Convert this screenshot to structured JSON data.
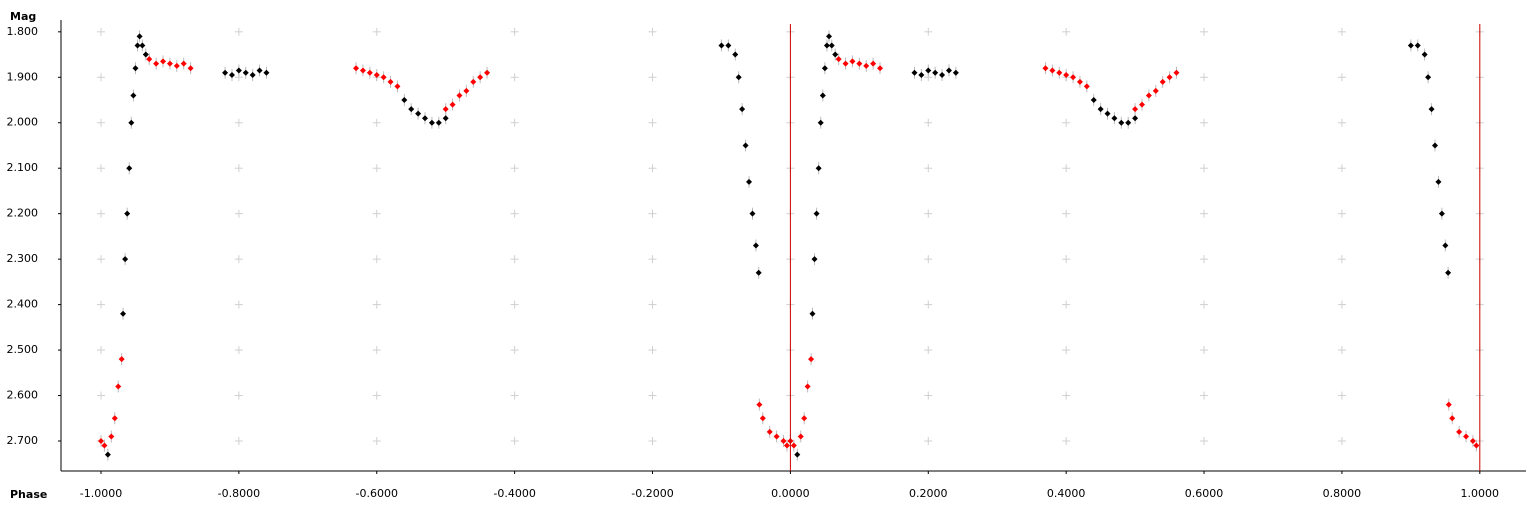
{
  "chart_data": {
    "type": "scatter",
    "x_label": "Phase",
    "y_label": "Mag",
    "xlim": [
      -1.058,
      1.067
    ],
    "ylim": [
      1.774,
      2.766
    ],
    "y_inverted": true,
    "grid": true,
    "xticks": [
      {
        "value": -1.0,
        "label": "-1.0000"
      },
      {
        "value": -0.8,
        "label": "-0.8000"
      },
      {
        "value": -0.6,
        "label": "-0.6000"
      },
      {
        "value": -0.4,
        "label": "-0.4000"
      },
      {
        "value": -0.2,
        "label": "-0.2000"
      },
      {
        "value": 0,
        "label": "0.0000"
      },
      {
        "value": 0.2,
        "label": "0.2000"
      },
      {
        "value": 0.4,
        "label": "0.4000"
      },
      {
        "value": 0.6,
        "label": "0.6000"
      },
      {
        "value": 0.8,
        "label": "0.8000"
      },
      {
        "value": 1.0,
        "label": "1.0000"
      }
    ],
    "yticks": [
      {
        "value": 1.8,
        "label": "1.800"
      },
      {
        "value": 1.9,
        "label": "1.900"
      },
      {
        "value": 2.0,
        "label": "2.000"
      },
      {
        "value": 2.1,
        "label": "2.100"
      },
      {
        "value": 2.2,
        "label": "2.200"
      },
      {
        "value": 2.3,
        "label": "2.300"
      },
      {
        "value": 2.4,
        "label": "2.400"
      },
      {
        "value": 2.5,
        "label": "2.500"
      },
      {
        "value": 2.6,
        "label": "2.600"
      },
      {
        "value": 2.7,
        "label": "2.700"
      }
    ],
    "reference_lines": {
      "values": [
        0,
        1
      ],
      "color": "#cc0000"
    },
    "series": [
      {
        "color": "#000000",
        "x": [
          -0.99,
          -0.968,
          -0.965,
          -0.962,
          -0.959,
          -0.956,
          -0.953,
          -0.95,
          -0.947,
          -0.944,
          -0.94,
          -0.935,
          -0.82,
          -0.81,
          -0.8,
          -0.79,
          -0.78,
          -0.77,
          -0.76,
          -0.56,
          -0.55,
          -0.54,
          -0.53,
          -0.52,
          -0.51,
          -0.5,
          -0.1,
          -0.09,
          -0.08,
          -0.075,
          -0.07,
          -0.065,
          -0.06,
          -0.055,
          -0.05,
          -0.046,
          0.01,
          0.032,
          0.035,
          0.038,
          0.041,
          0.044,
          0.047,
          0.05,
          0.053,
          0.056,
          0.06,
          0.065,
          0.18,
          0.19,
          0.2,
          0.21,
          0.22,
          0.23,
          0.24,
          0.44,
          0.45,
          0.46,
          0.47,
          0.48,
          0.49,
          0.5,
          0.9,
          0.91,
          0.92,
          0.925,
          0.93,
          0.935,
          0.94,
          0.945,
          0.95,
          0.954
        ],
        "values": [
          2.73,
          2.42,
          2.3,
          2.2,
          2.1,
          2.0,
          1.94,
          1.88,
          1.83,
          1.81,
          1.83,
          1.85,
          1.89,
          1.895,
          1.885,
          1.89,
          1.895,
          1.885,
          1.89,
          1.95,
          1.97,
          1.98,
          1.99,
          2.0,
          2.0,
          1.99,
          1.83,
          1.83,
          1.85,
          1.9,
          1.97,
          2.05,
          2.13,
          2.2,
          2.27,
          2.33,
          2.73,
          2.42,
          2.3,
          2.2,
          2.1,
          2.0,
          1.94,
          1.88,
          1.83,
          1.81,
          1.83,
          1.85,
          1.89,
          1.895,
          1.885,
          1.89,
          1.895,
          1.885,
          1.89,
          1.95,
          1.97,
          1.98,
          1.99,
          2.0,
          2.0,
          1.99,
          1.83,
          1.83,
          1.85,
          1.9,
          1.97,
          2.05,
          2.13,
          2.2,
          2.27,
          2.33
        ]
      },
      {
        "color": "#ff0000",
        "x": [
          -1.0,
          -0.995,
          -0.985,
          -0.98,
          -0.975,
          -0.97,
          -0.93,
          -0.92,
          -0.91,
          -0.9,
          -0.89,
          -0.88,
          -0.87,
          -0.63,
          -0.62,
          -0.61,
          -0.6,
          -0.59,
          -0.58,
          -0.57,
          -0.5,
          -0.49,
          -0.48,
          -0.47,
          -0.46,
          -0.45,
          -0.44,
          -0.045,
          -0.04,
          -0.03,
          -0.02,
          -0.01,
          -0.005,
          0.0,
          0.005,
          0.015,
          0.02,
          0.025,
          0.03,
          0.07,
          0.08,
          0.09,
          0.1,
          0.11,
          0.12,
          0.13,
          0.37,
          0.38,
          0.39,
          0.4,
          0.41,
          0.42,
          0.43,
          0.5,
          0.51,
          0.52,
          0.53,
          0.54,
          0.55,
          0.56,
          0.955,
          0.96,
          0.97,
          0.98,
          0.99,
          0.995
        ],
        "values": [
          2.7,
          2.71,
          2.69,
          2.65,
          2.58,
          2.52,
          1.86,
          1.87,
          1.865,
          1.87,
          1.875,
          1.87,
          1.88,
          1.88,
          1.885,
          1.89,
          1.895,
          1.9,
          1.91,
          1.92,
          1.97,
          1.96,
          1.94,
          1.93,
          1.91,
          1.9,
          1.89,
          2.62,
          2.65,
          2.68,
          2.69,
          2.7,
          2.71,
          2.7,
          2.71,
          2.69,
          2.65,
          2.58,
          2.52,
          1.86,
          1.87,
          1.865,
          1.87,
          1.875,
          1.87,
          1.88,
          1.88,
          1.885,
          1.89,
          1.895,
          1.9,
          1.91,
          1.92,
          1.97,
          1.96,
          1.94,
          1.93,
          1.91,
          1.9,
          1.89,
          2.62,
          2.65,
          2.68,
          2.69,
          2.7,
          2.71
        ]
      }
    ]
  }
}
